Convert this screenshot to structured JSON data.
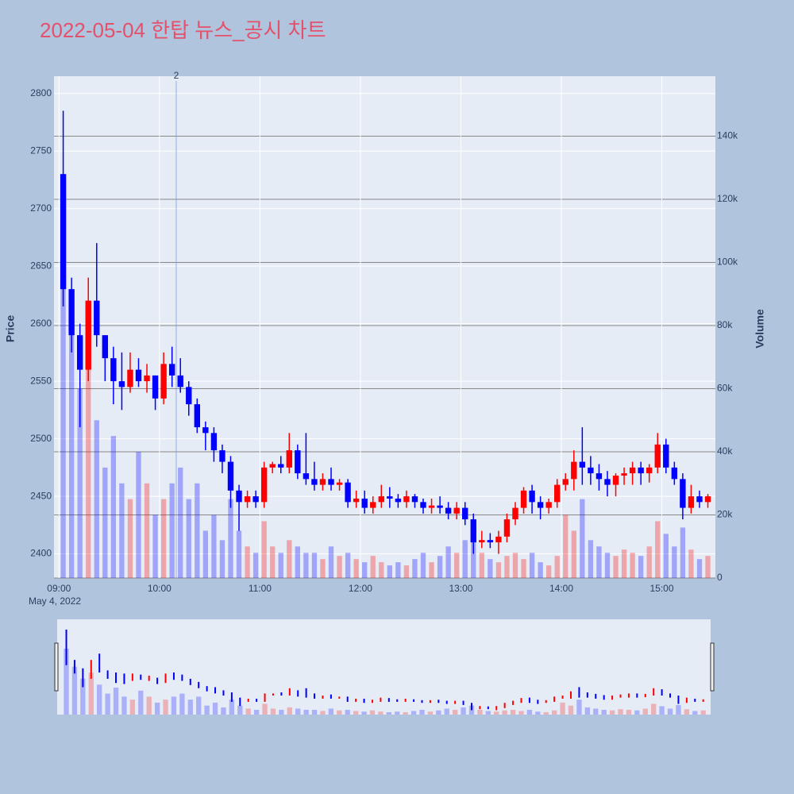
{
  "chart_data": {
    "type": "candlestick",
    "title": "2022-05-04 한탑 뉴스_공시 차트",
    "date_label": "May 4, 2022",
    "ylabel": "Price",
    "y2label": "Volume",
    "x": [
      "09:00",
      "09:05",
      "09:10",
      "09:15",
      "09:20",
      "09:25",
      "09:30",
      "09:35",
      "09:40",
      "09:45",
      "09:50",
      "09:55",
      "10:00",
      "10:05",
      "10:10",
      "10:15",
      "10:20",
      "10:25",
      "10:30",
      "10:35",
      "10:40",
      "10:45",
      "10:50",
      "10:55",
      "11:00",
      "11:05",
      "11:10",
      "11:15",
      "11:20",
      "11:25",
      "11:30",
      "11:35",
      "11:40",
      "11:45",
      "11:50",
      "11:55",
      "12:00",
      "12:05",
      "12:10",
      "12:15",
      "12:20",
      "12:25",
      "12:30",
      "12:35",
      "12:40",
      "12:45",
      "12:50",
      "12:55",
      "13:00",
      "13:05",
      "13:10",
      "13:15",
      "13:20",
      "13:25",
      "13:30",
      "13:35",
      "13:40",
      "13:45",
      "13:50",
      "13:55",
      "14:00",
      "14:05",
      "14:10",
      "14:15",
      "14:20",
      "14:25",
      "14:30",
      "14:35",
      "14:40",
      "14:45",
      "14:50",
      "14:55",
      "15:00",
      "15:05",
      "15:10",
      "15:15",
      "15:20",
      "15:25"
    ],
    "open": [
      2730,
      2630,
      2590,
      2560,
      2620,
      2590,
      2570,
      2550,
      2545,
      2560,
      2550,
      2555,
      2535,
      2565,
      2555,
      2545,
      2530,
      2510,
      2505,
      2490,
      2480,
      2455,
      2445,
      2450,
      2445,
      2475,
      2478,
      2475,
      2490,
      2470,
      2465,
      2460,
      2465,
      2460,
      2462,
      2445,
      2448,
      2440,
      2445,
      2450,
      2448,
      2445,
      2450,
      2445,
      2440,
      2442,
      2440,
      2435,
      2440,
      2430,
      2410,
      2412,
      2410,
      2415,
      2430,
      2440,
      2455,
      2445,
      2440,
      2445,
      2460,
      2465,
      2480,
      2475,
      2470,
      2465,
      2460,
      2468,
      2470,
      2475,
      2470,
      2475,
      2495,
      2475,
      2465,
      2440,
      2450,
      2445
    ],
    "high": [
      2785,
      2640,
      2600,
      2640,
      2670,
      2590,
      2580,
      2575,
      2575,
      2570,
      2565,
      2555,
      2575,
      2580,
      2570,
      2550,
      2535,
      2515,
      2510,
      2495,
      2485,
      2460,
      2455,
      2455,
      2480,
      2480,
      2485,
      2505,
      2495,
      2505,
      2480,
      2470,
      2475,
      2465,
      2465,
      2455,
      2455,
      2450,
      2460,
      2458,
      2452,
      2455,
      2452,
      2448,
      2448,
      2450,
      2445,
      2445,
      2445,
      2435,
      2420,
      2418,
      2420,
      2435,
      2445,
      2458,
      2460,
      2450,
      2448,
      2465,
      2470,
      2490,
      2510,
      2485,
      2478,
      2472,
      2470,
      2475,
      2480,
      2480,
      2478,
      2505,
      2500,
      2480,
      2470,
      2460,
      2455,
      2452
    ],
    "low": [
      2615,
      2575,
      2510,
      2550,
      2580,
      2550,
      2530,
      2525,
      2540,
      2545,
      2540,
      2525,
      2530,
      2545,
      2540,
      2520,
      2505,
      2490,
      2480,
      2470,
      2440,
      2420,
      2440,
      2440,
      2440,
      2470,
      2470,
      2470,
      2465,
      2460,
      2455,
      2455,
      2455,
      2455,
      2440,
      2440,
      2435,
      2435,
      2440,
      2440,
      2440,
      2440,
      2440,
      2435,
      2435,
      2435,
      2430,
      2430,
      2425,
      2400,
      2405,
      2405,
      2400,
      2410,
      2425,
      2435,
      2435,
      2430,
      2435,
      2440,
      2455,
      2455,
      2460,
      2460,
      2455,
      2450,
      2450,
      2460,
      2460,
      2460,
      2462,
      2470,
      2470,
      2460,
      2430,
      2435,
      2440,
      2440
    ],
    "close": [
      2630,
      2590,
      2560,
      2620,
      2590,
      2570,
      2550,
      2545,
      2560,
      2550,
      2555,
      2535,
      2565,
      2555,
      2545,
      2530,
      2510,
      2505,
      2490,
      2480,
      2455,
      2445,
      2450,
      2445,
      2475,
      2478,
      2475,
      2490,
      2470,
      2465,
      2460,
      2465,
      2460,
      2462,
      2445,
      2448,
      2440,
      2445,
      2450,
      2448,
      2445,
      2450,
      2445,
      2440,
      2442,
      2440,
      2435,
      2440,
      2430,
      2410,
      2412,
      2410,
      2415,
      2430,
      2440,
      2455,
      2445,
      2440,
      2445,
      2460,
      2465,
      2480,
      2475,
      2470,
      2465,
      2460,
      2468,
      2470,
      2475,
      2470,
      2475,
      2495,
      2475,
      2465,
      2440,
      2450,
      2445,
      2450
    ],
    "volume": [
      110000,
      80000,
      60000,
      70000,
      50000,
      35000,
      45000,
      30000,
      25000,
      40000,
      30000,
      20000,
      25000,
      30000,
      35000,
      25000,
      30000,
      15000,
      20000,
      12000,
      25000,
      15000,
      10000,
      8000,
      18000,
      10000,
      8000,
      12000,
      10000,
      8000,
      8000,
      6000,
      10000,
      7000,
      8000,
      6000,
      5000,
      7000,
      5000,
      4000,
      5000,
      4000,
      6000,
      8000,
      5000,
      7000,
      10000,
      8000,
      12000,
      15000,
      8000,
      6000,
      5000,
      7000,
      8000,
      6000,
      8000,
      5000,
      4000,
      7000,
      20000,
      15000,
      25000,
      12000,
      10000,
      8000,
      7000,
      9000,
      8000,
      7000,
      10000,
      18000,
      14000,
      10000,
      16000,
      9000,
      6000,
      7000
    ],
    "up_color": "#ff0000",
    "down_color": "#0000ff",
    "xlim": [
      "08:57",
      "15:32"
    ],
    "xticks": [
      "09:00",
      "10:00",
      "11:00",
      "12:00",
      "13:00",
      "14:00",
      "15:00"
    ],
    "ylim": [
      2379,
      2815
    ],
    "yticks": [
      2400,
      2450,
      2500,
      2550,
      2600,
      2650,
      2700,
      2750,
      2800
    ],
    "y2lim": [
      0,
      159000
    ],
    "y2ticks": [
      0,
      {
        "value": 20000,
        "label": "20k"
      },
      {
        "value": 40000,
        "label": "40k"
      },
      {
        "value": 60000,
        "label": "60k"
      },
      {
        "value": 80000,
        "label": "80k"
      },
      {
        "value": 100000,
        "label": "100k"
      },
      {
        "value": 120000,
        "label": "120k"
      },
      {
        "value": 140000,
        "label": "140k"
      }
    ],
    "annotations": [
      {
        "x": "10:10",
        "text": "2"
      }
    ]
  }
}
